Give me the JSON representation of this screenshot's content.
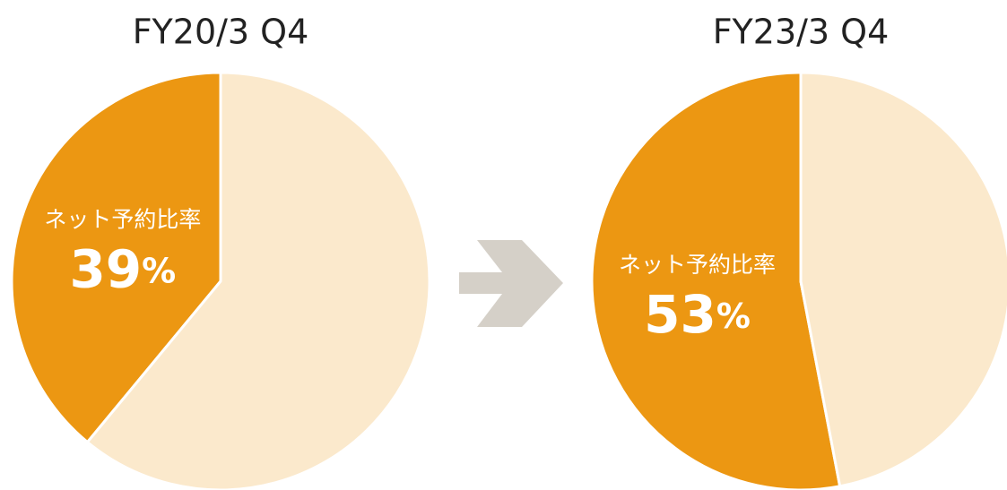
{
  "chart_data": [
    {
      "type": "pie",
      "title": "FY20/3 Q4",
      "categories": [
        "ネット予約比率",
        null
      ],
      "values": [
        39,
        61
      ],
      "value_labels": [
        "39%",
        null
      ],
      "colors": [
        "#ec9712",
        "#fbe9cc"
      ]
    },
    {
      "type": "pie",
      "title": "FY23/3 Q4",
      "categories": [
        "ネット予約比率",
        null
      ],
      "values": [
        53,
        47
      ],
      "value_labels": [
        "53%",
        null
      ],
      "colors": [
        "#ec9712",
        "#fbe9cc"
      ]
    }
  ]
}
